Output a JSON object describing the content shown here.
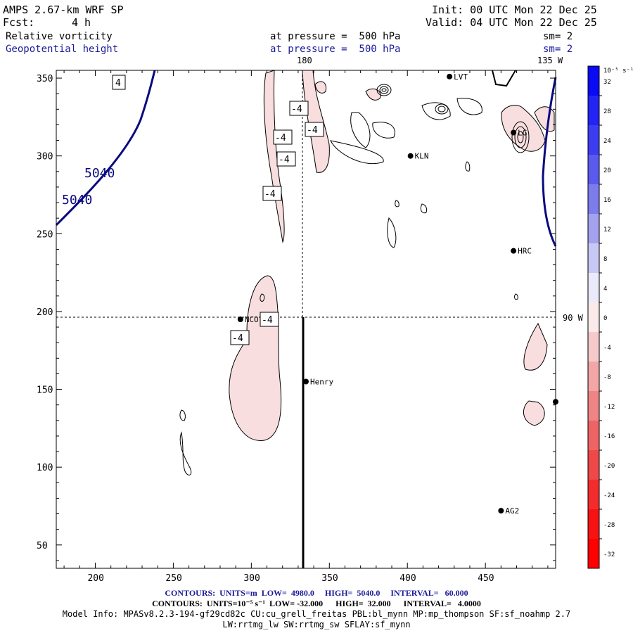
{
  "header": {
    "model": "AMPS 2.67-km WRF SP",
    "init": "Init: 00 UTC Mon 22 Dec 25",
    "fcst_label": "Fcst:",
    "fcst_value": "4 h",
    "valid": "Valid: 04 UTC Mon 22 Dec 25",
    "field1": "Relative vorticity",
    "field1_level": "at pressure =  500 hPa",
    "field1_sm": "sm= 2",
    "field2": "Geopotential height",
    "field2_level": "at pressure =  500 hPa",
    "field2_sm": "sm= 2"
  },
  "map": {
    "x_ticks": [
      "200",
      "250",
      "300",
      "350",
      "400",
      "450"
    ],
    "y_ticks": [
      "350",
      "300",
      "250",
      "200",
      "150",
      "100",
      "50"
    ],
    "x_ticks_values": [
      200,
      250,
      300,
      350,
      400,
      450
    ],
    "y_ticks_values": [
      350,
      300,
      250,
      200,
      150,
      100,
      50
    ],
    "meridian_top_label": "180",
    "meridian_top_right_label": "135 W",
    "parallel_right_label": "90 W",
    "height_labels": [
      "5040",
      "5040"
    ],
    "vort_labels": [
      "4",
      "-4",
      "-4",
      "-4",
      "-4",
      "-4",
      "-4",
      "-4"
    ],
    "stations": [
      {
        "name": "NCO",
        "x": 293,
        "y": 195
      },
      {
        "name": "Henry",
        "x": 335,
        "y": 155
      },
      {
        "name": "KLN",
        "x": 402,
        "y": 300
      },
      {
        "name": "HRC",
        "x": 468,
        "y": 239
      },
      {
        "name": "AG2",
        "x": 460,
        "y": 72
      },
      {
        "name": "LVT",
        "x": 427,
        "y": 351
      },
      {
        "name": "LG",
        "x": 468,
        "y": 315
      },
      {
        "name": "",
        "x": 495,
        "y": 142
      }
    ]
  },
  "colorbar": {
    "unit": "10⁻⁵ s⁻¹",
    "labels": [
      "32",
      "28",
      "24",
      "20",
      "16",
      "12",
      "8",
      "4",
      "0",
      "-4",
      "-8",
      "-12",
      "-16",
      "-20",
      "-24",
      "-28",
      "-32"
    ],
    "colors": [
      "#0a0af5",
      "#2323f3",
      "#3c3cf0",
      "#5a5aee",
      "#7c7cec",
      "#a2a2ee",
      "#c8c8f4",
      "#eaeafa",
      "#faeaea",
      "#f6caca",
      "#f2a6a6",
      "#ef8484",
      "#ee6464",
      "#ef4848",
      "#f22c2c",
      "#f71313",
      "#ff0000"
    ]
  },
  "footer": {
    "line1": "CONTOURS:  UNITS=m  LOW=  4980.0     HIGH=  5040.0     INTERVAL=   60.000",
    "line2": "CONTOURS:  UNITS=10⁻⁵ s⁻¹  LOW= -32.000      HIGH=  32.000      INTERVAL=   4.0000",
    "line3": "Model Info: MPASv8.2.3-194-gf29cd82c CU:cu_grell_freitas PBL:bl_mynn MP:mp_thompson SF:sf_noahmp 2.7",
    "line4": "LW:rrtmg_lw SW:rrtmg_sw SFLAY:sf_mynn"
  }
}
